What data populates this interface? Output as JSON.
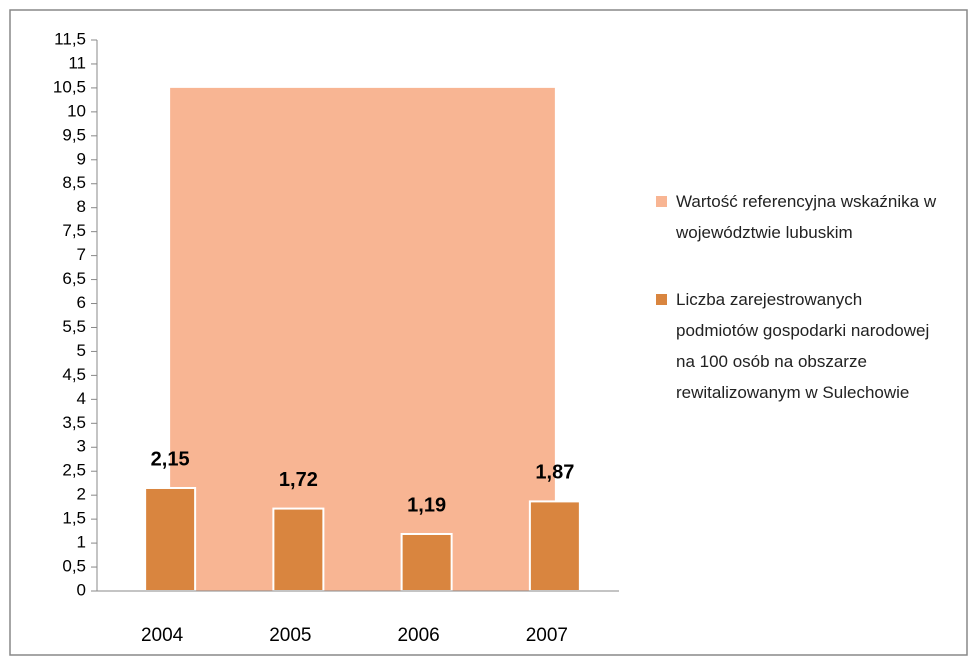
{
  "chart_data": {
    "type": "bar",
    "categories": [
      "2004",
      "2005",
      "2006",
      "2007"
    ],
    "series": [
      {
        "name": "Wartość referencyjna wskaźnika w województwie lubuskim",
        "type": "area",
        "color": "#f8b593",
        "values": [
          10.5,
          10.5,
          10.5,
          10.5
        ]
      },
      {
        "name": "Liczba zarejestrowanych podmiotów gospodarki narodowej na 100 osób na obszarze rewitalizowanym w Sulechowie",
        "type": "bar",
        "color": "#d9853f",
        "values": [
          2.15,
          1.72,
          1.19,
          1.87
        ],
        "value_labels": [
          "2,15",
          "1,72",
          "1,19",
          "1,87"
        ]
      }
    ],
    "ylim": [
      0,
      11.5
    ],
    "yticks": [
      0,
      {
        "value": 0.5,
        "label": "0,5"
      },
      1,
      {
        "value": 1.5,
        "label": "1,5"
      },
      2,
      {
        "value": 2.5,
        "label": "2,5"
      },
      3,
      {
        "value": 3.5,
        "label": "3,5"
      },
      4,
      {
        "value": 4.5,
        "label": "4,5"
      },
      5,
      {
        "value": 5.5,
        "label": "5,5"
      },
      6,
      {
        "value": 6.5,
        "label": "6,5"
      },
      7,
      {
        "value": 7.5,
        "label": "7,5"
      },
      8,
      {
        "value": 8.5,
        "label": "8,5"
      },
      9,
      {
        "value": 9.5,
        "label": "9,5"
      },
      10,
      {
        "value": 10.5,
        "label": "10,5"
      },
      11,
      {
        "value": 11.5,
        "label": "11,5"
      }
    ],
    "legend": "right"
  }
}
